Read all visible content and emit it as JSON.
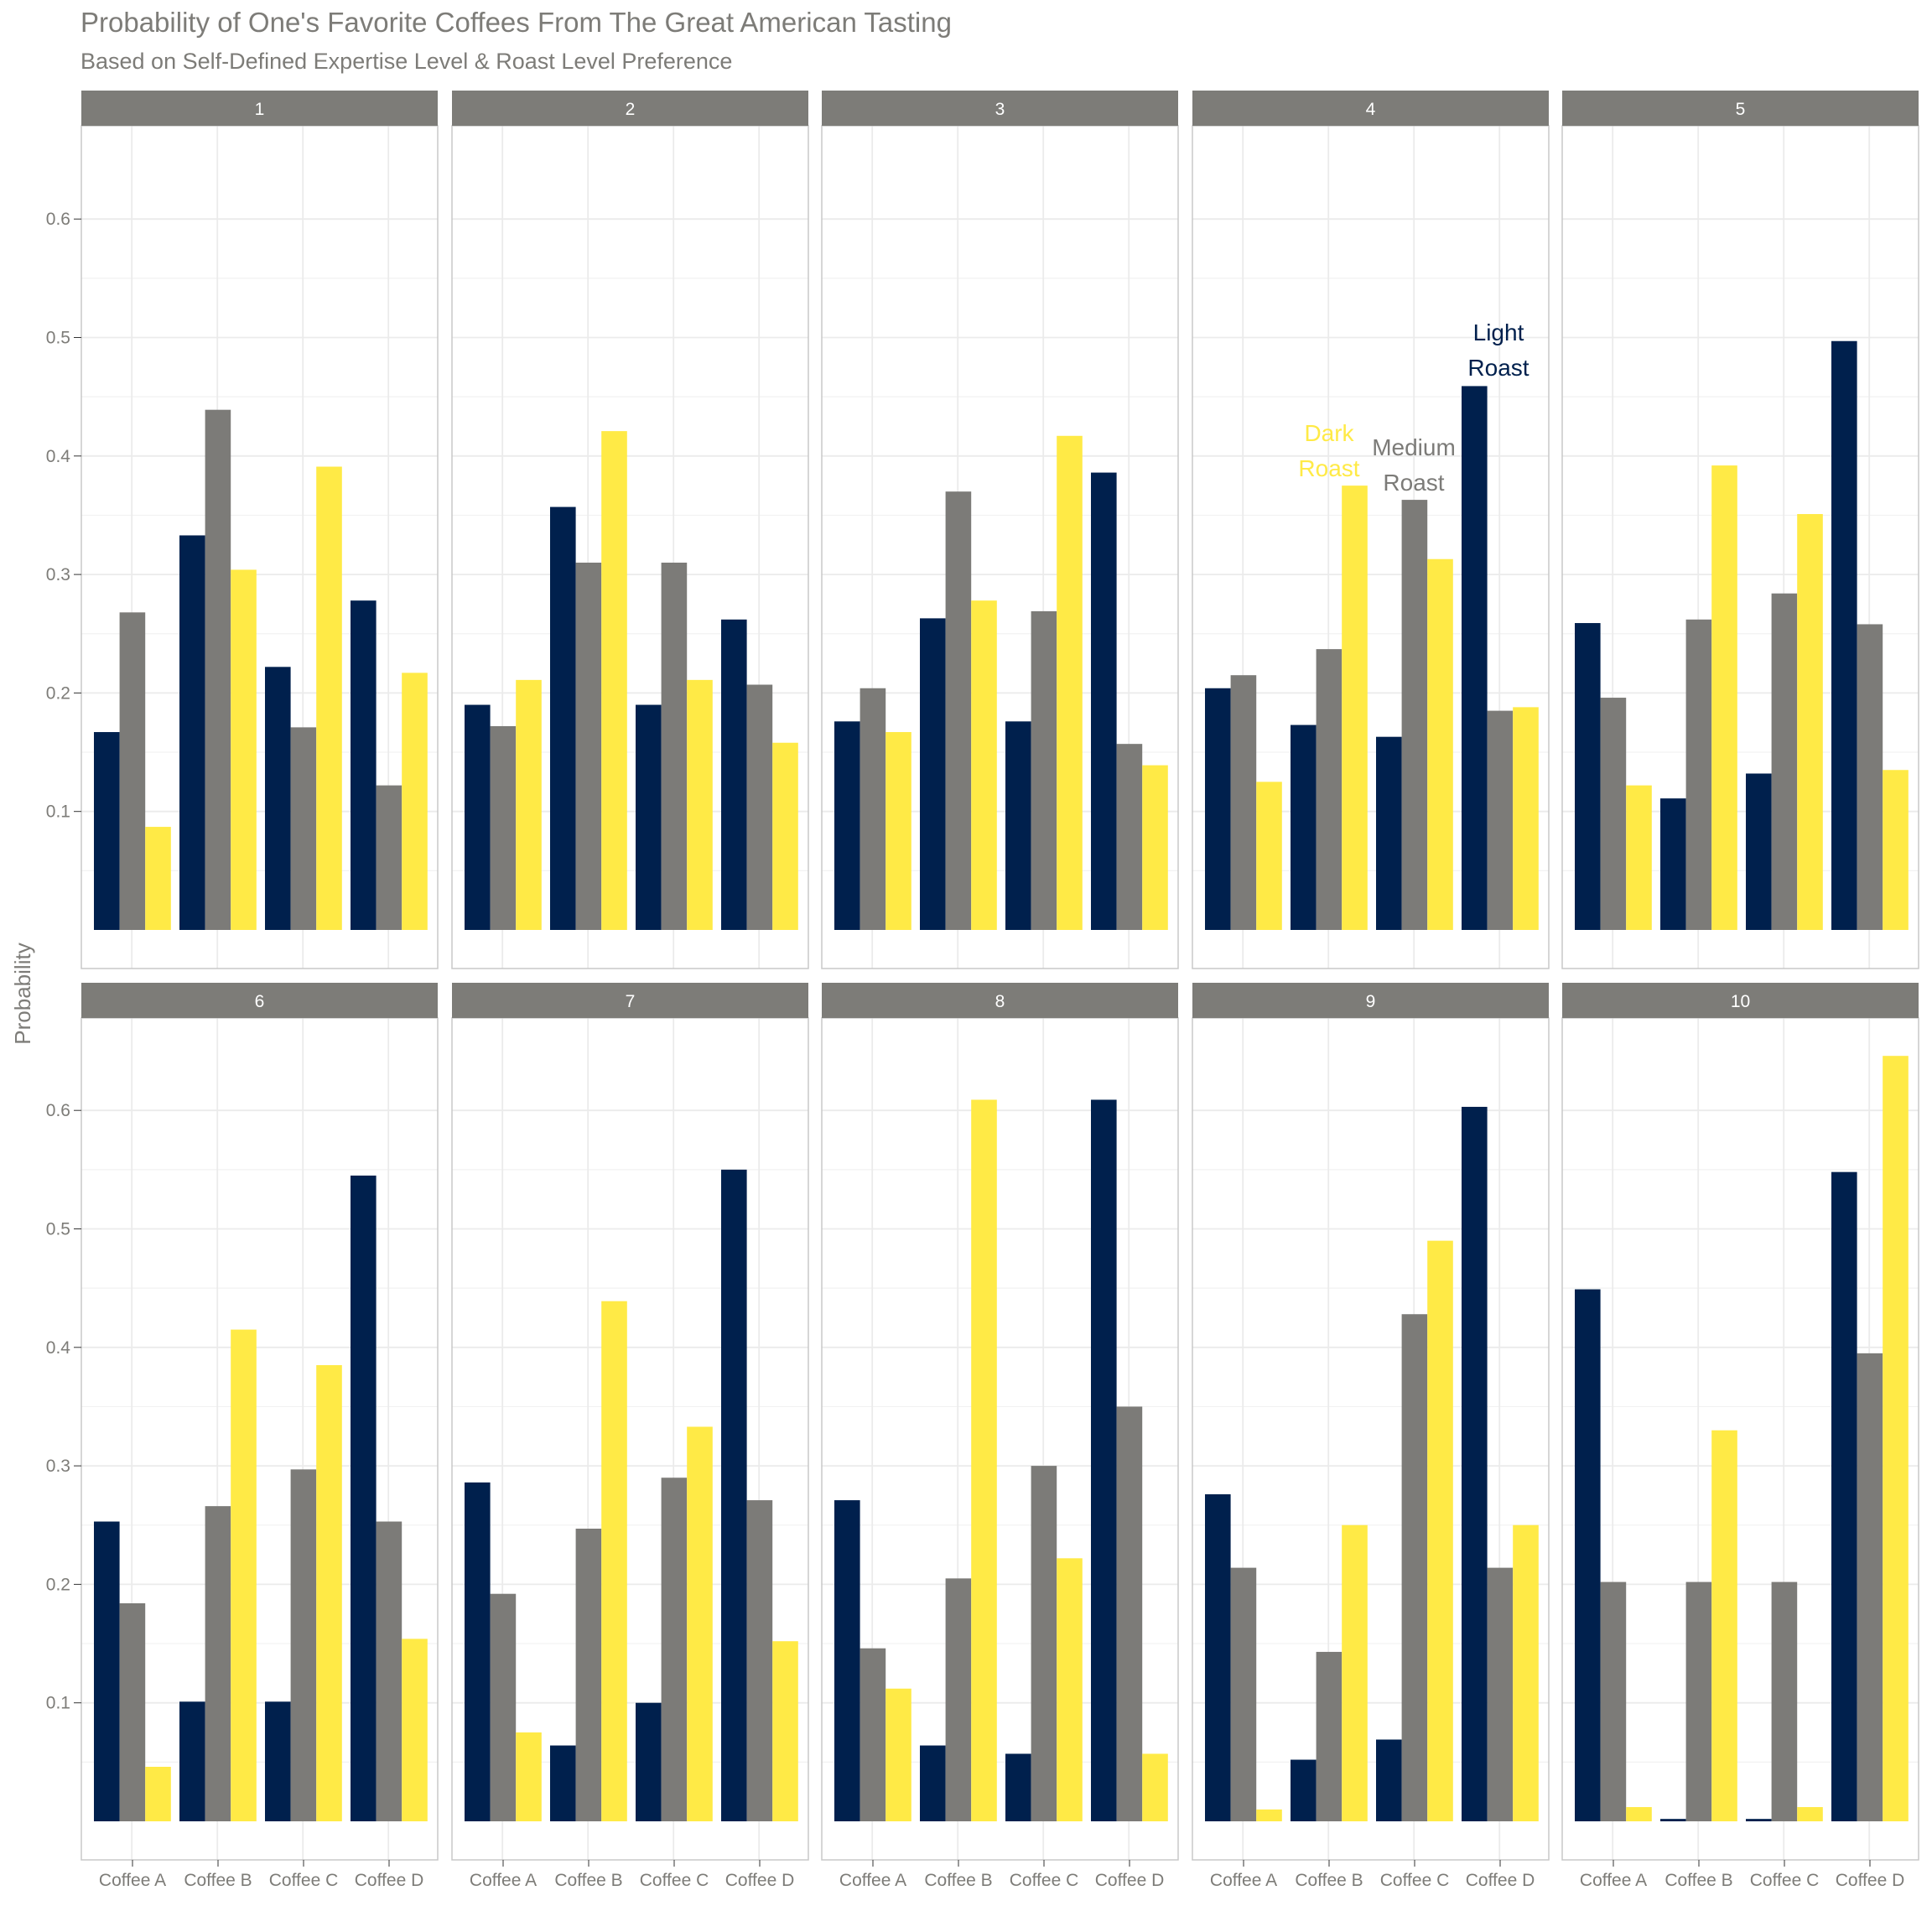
{
  "title": "Probability of One's Favorite Coffees From The Great American Tasting",
  "subtitle": "Based on Self-Defined Expertise Level & Roast Level Preference",
  "colors": {
    "light_roast": "#00204d",
    "medium_roast": "#7c7b78",
    "dark_roast": "#ffea46",
    "strip_bg": "#7d7c78",
    "text_gray": "#7d7c78",
    "grid": "#ebebeb",
    "panel_border": "#c8c8c8"
  },
  "chart_data": {
    "type": "bar",
    "title": "Probability of One's Favorite Coffees From The Great American Tasting",
    "subtitle": "Based on Self-Defined Expertise Level & Roast Level Preference",
    "xlabel": "",
    "ylabel": "Probability",
    "ylim": [
      0,
      0.6
    ],
    "y_ticks": [
      0.1,
      0.2,
      0.3,
      0.4,
      0.5,
      0.6
    ],
    "y_tick_labels": [
      "0.1",
      "0.2",
      "0.3",
      "0.4",
      "0.5",
      "0.6"
    ],
    "categories": [
      "Coffee A",
      "Coffee B",
      "Coffee C",
      "Coffee D"
    ],
    "grid": true,
    "legend": "none (series labelled directly in panel 4)",
    "series_names": [
      "Light Roast",
      "Medium Roast",
      "Dark Roast"
    ],
    "direct_labels": [
      {
        "series": "Dark Roast",
        "lines": [
          "Dark",
          "Roast"
        ]
      },
      {
        "series": "Medium Roast",
        "lines": [
          "Medium",
          "Roast"
        ]
      },
      {
        "series": "Light Roast",
        "lines": [
          "Light",
          "Roast"
        ]
      }
    ],
    "facets": [
      {
        "label": "1",
        "series": [
          {
            "name": "Light Roast",
            "values": [
              0.167,
              0.333,
              0.222,
              0.278
            ]
          },
          {
            "name": "Medium Roast",
            "values": [
              0.268,
              0.439,
              0.171,
              0.122
            ]
          },
          {
            "name": "Dark Roast",
            "values": [
              0.087,
              0.304,
              0.391,
              0.217
            ]
          }
        ]
      },
      {
        "label": "2",
        "series": [
          {
            "name": "Light Roast",
            "values": [
              0.19,
              0.357,
              0.19,
              0.262
            ]
          },
          {
            "name": "Medium Roast",
            "values": [
              0.172,
              0.31,
              0.31,
              0.207
            ]
          },
          {
            "name": "Dark Roast",
            "values": [
              0.211,
              0.421,
              0.211,
              0.158
            ]
          }
        ]
      },
      {
        "label": "3",
        "series": [
          {
            "name": "Light Roast",
            "values": [
              0.176,
              0.263,
              0.176,
              0.386
            ]
          },
          {
            "name": "Medium Roast",
            "values": [
              0.204,
              0.37,
              0.269,
              0.157
            ]
          },
          {
            "name": "Dark Roast",
            "values": [
              0.167,
              0.278,
              0.417,
              0.139
            ]
          }
        ]
      },
      {
        "label": "4",
        "series": [
          {
            "name": "Light Roast",
            "values": [
              0.204,
              0.173,
              0.163,
              0.459
            ]
          },
          {
            "name": "Medium Roast",
            "values": [
              0.215,
              0.237,
              0.363,
              0.185
            ]
          },
          {
            "name": "Dark Roast",
            "values": [
              0.125,
              0.375,
              0.313,
              0.188
            ]
          }
        ]
      },
      {
        "label": "5",
        "series": [
          {
            "name": "Light Roast",
            "values": [
              0.259,
              0.111,
              0.132,
              0.497
            ]
          },
          {
            "name": "Medium Roast",
            "values": [
              0.196,
              0.262,
              0.284,
              0.258
            ]
          },
          {
            "name": "Dark Roast",
            "values": [
              0.122,
              0.392,
              0.351,
              0.135
            ]
          }
        ]
      },
      {
        "label": "6",
        "series": [
          {
            "name": "Light Roast",
            "values": [
              0.253,
              0.101,
              0.101,
              0.545
            ]
          },
          {
            "name": "Medium Roast",
            "values": [
              0.184,
              0.266,
              0.297,
              0.253
            ]
          },
          {
            "name": "Dark Roast",
            "values": [
              0.046,
              0.415,
              0.385,
              0.154
            ]
          }
        ]
      },
      {
        "label": "7",
        "series": [
          {
            "name": "Light Roast",
            "values": [
              0.286,
              0.064,
              0.1,
              0.55
            ]
          },
          {
            "name": "Medium Roast",
            "values": [
              0.192,
              0.247,
              0.29,
              0.271
            ]
          },
          {
            "name": "Dark Roast",
            "values": [
              0.075,
              0.439,
              0.333,
              0.152
            ]
          }
        ]
      },
      {
        "label": "8",
        "series": [
          {
            "name": "Light Roast",
            "values": [
              0.271,
              0.064,
              0.057,
              0.609
            ]
          },
          {
            "name": "Medium Roast",
            "values": [
              0.146,
              0.205,
              0.3,
              0.35
            ]
          },
          {
            "name": "Dark Roast",
            "values": [
              0.112,
              0.609,
              0.222,
              0.057
            ]
          }
        ]
      },
      {
        "label": "9",
        "series": [
          {
            "name": "Light Roast",
            "values": [
              0.276,
              0.052,
              0.069,
              0.603
            ]
          },
          {
            "name": "Medium Roast",
            "values": [
              0.214,
              0.143,
              0.428,
              0.214
            ]
          },
          {
            "name": "Dark Roast",
            "values": [
              0.01,
              0.25,
              0.49,
              0.25
            ]
          }
        ]
      },
      {
        "label": "10",
        "series": [
          {
            "name": "Light Roast",
            "values": [
              0.449,
              0.002,
              0.002,
              0.548
            ]
          },
          {
            "name": "Medium Roast",
            "values": [
              0.202,
              0.202,
              0.202,
              0.395
            ]
          },
          {
            "name": "Dark Roast",
            "values": [
              0.012,
              0.33,
              0.012,
              0.646
            ]
          }
        ]
      }
    ]
  }
}
